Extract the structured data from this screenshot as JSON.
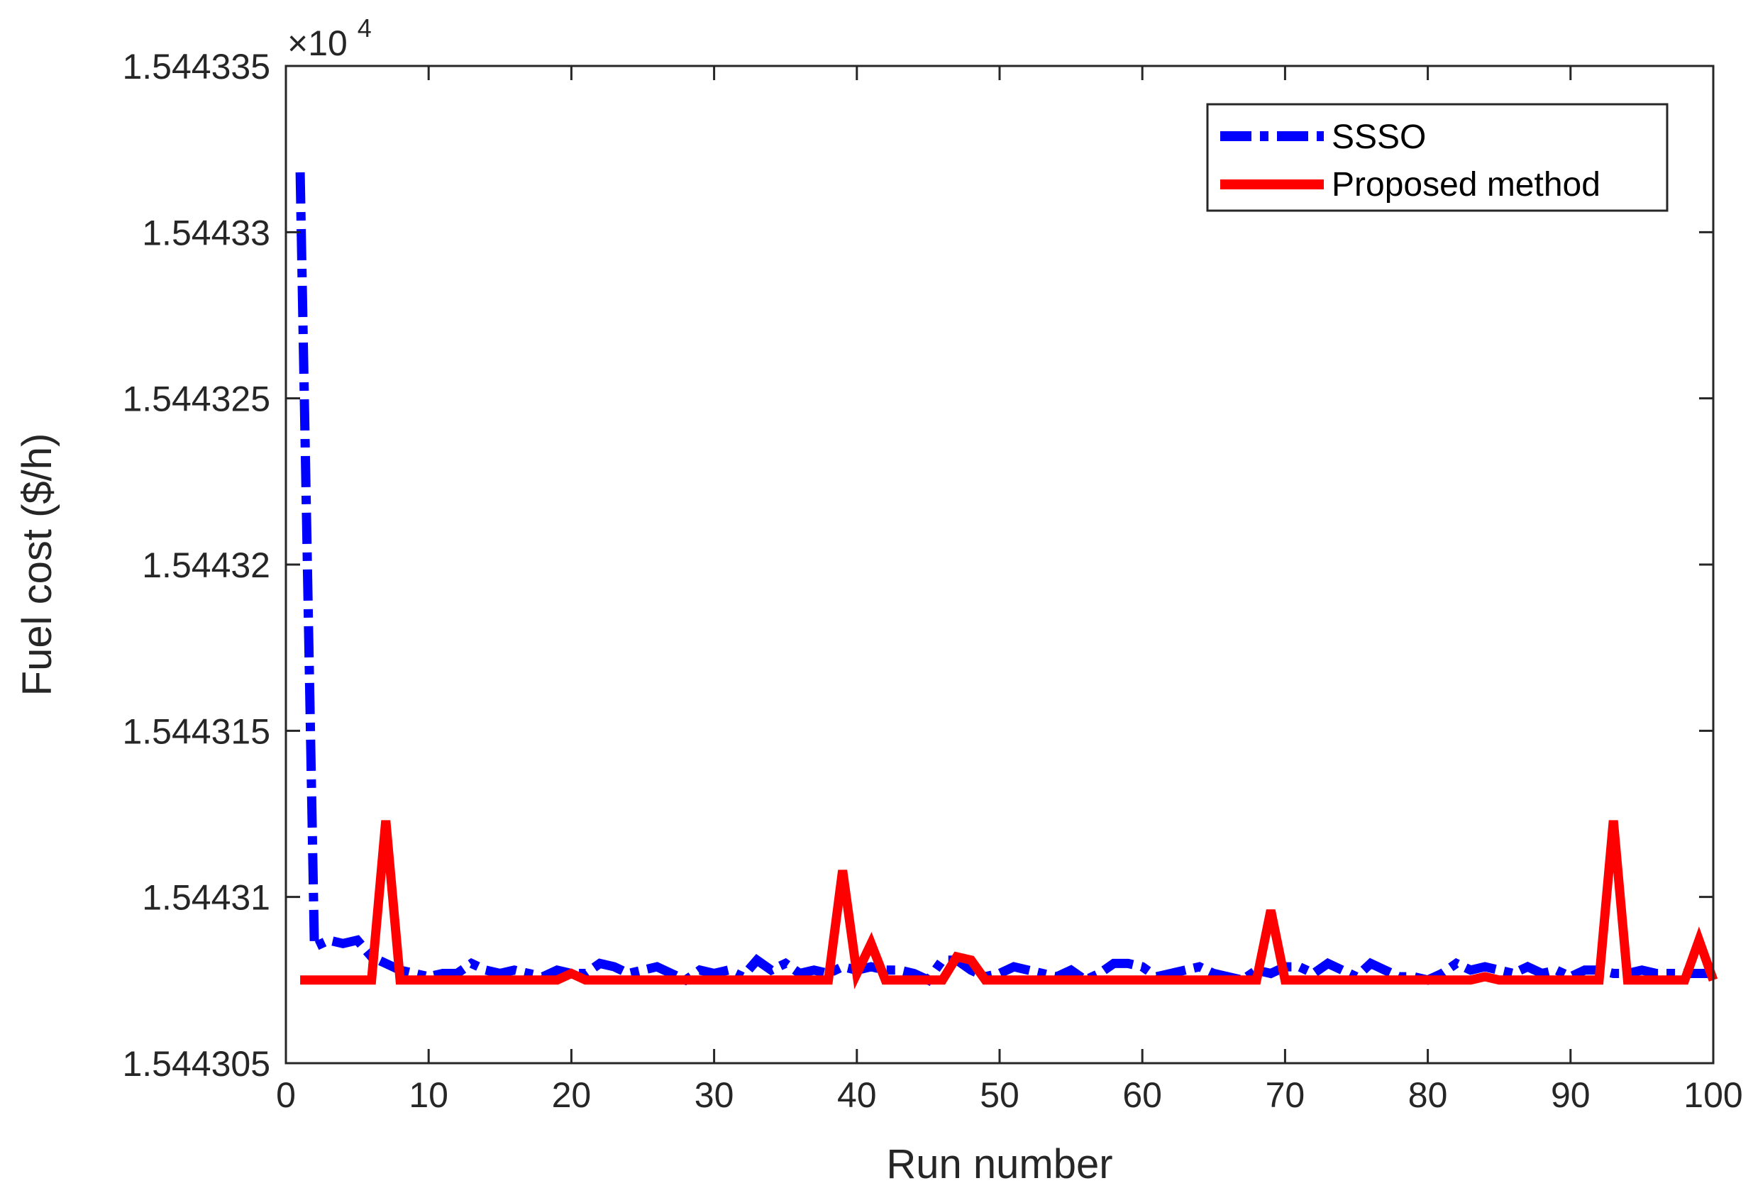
{
  "chart_data": {
    "type": "line",
    "xlabel": "Run number",
    "ylabel": "Fuel cost ($/h)",
    "exponent_label": "×10",
    "exponent_power": "4",
    "xlim": [
      0,
      100
    ],
    "ylim": [
      1.544305,
      1.544335
    ],
    "x_ticks": [
      0,
      10,
      20,
      30,
      40,
      50,
      60,
      70,
      80,
      90,
      100
    ],
    "x_tick_labels": [
      "0",
      "10",
      "20",
      "30",
      "40",
      "50",
      "60",
      "70",
      "80",
      "90",
      "100"
    ],
    "y_ticks": [
      1.544305,
      1.54431,
      1.544315,
      1.54432,
      1.544325,
      1.54433,
      1.544335
    ],
    "y_tick_labels": [
      "1.544305",
      "1.54431",
      "1.544315",
      "1.54432",
      "1.544325",
      "1.54433",
      "1.544335"
    ],
    "grid": false,
    "legend_position": "top-right",
    "x": [
      1,
      2,
      3,
      4,
      5,
      6,
      7,
      8,
      9,
      10,
      11,
      12,
      13,
      14,
      15,
      16,
      17,
      18,
      19,
      20,
      21,
      22,
      23,
      24,
      25,
      26,
      27,
      28,
      29,
      30,
      31,
      32,
      33,
      34,
      35,
      36,
      37,
      38,
      39,
      40,
      41,
      42,
      43,
      44,
      45,
      46,
      47,
      48,
      49,
      50,
      51,
      52,
      53,
      54,
      55,
      56,
      57,
      58,
      59,
      60,
      61,
      62,
      63,
      64,
      65,
      66,
      67,
      68,
      69,
      70,
      71,
      72,
      73,
      74,
      75,
      76,
      77,
      78,
      79,
      80,
      81,
      82,
      83,
      84,
      85,
      86,
      87,
      88,
      89,
      90,
      91,
      92,
      93,
      94,
      95,
      96,
      97,
      98,
      99,
      100
    ],
    "series": [
      {
        "name": "SSSO",
        "color": "#0000ff",
        "style": "dashdot",
        "values": [
          1.5443318,
          1.5443085,
          1.5443087,
          1.5443086,
          1.5443087,
          1.5443082,
          1.544308,
          1.5443078,
          1.5443077,
          1.5443076,
          1.5443077,
          1.5443077,
          1.544308,
          1.5443078,
          1.5443077,
          1.5443078,
          1.5443077,
          1.5443076,
          1.5443078,
          1.5443077,
          1.5443077,
          1.544308,
          1.5443079,
          1.5443077,
          1.5443078,
          1.5443079,
          1.5443077,
          1.5443075,
          1.5443078,
          1.5443077,
          1.5443078,
          1.5443076,
          1.5443081,
          1.5443078,
          1.544308,
          1.5443077,
          1.5443078,
          1.5443077,
          1.5443079,
          1.5443078,
          1.5443079,
          1.5443078,
          1.5443078,
          1.5443077,
          1.5443075,
          1.5443081,
          1.5443081,
          1.5443078,
          1.5443076,
          1.5443077,
          1.5443079,
          1.5443078,
          1.5443077,
          1.5443076,
          1.5443078,
          1.5443075,
          1.5443077,
          1.544308,
          1.544308,
          1.5443079,
          1.5443076,
          1.5443077,
          1.5443078,
          1.5443079,
          1.5443077,
          1.5443076,
          1.5443075,
          1.5443078,
          1.5443077,
          1.5443079,
          1.5443079,
          1.5443077,
          1.544308,
          1.5443078,
          1.5443076,
          1.544308,
          1.5443078,
          1.5443076,
          1.5443076,
          1.5443075,
          1.5443077,
          1.544308,
          1.5443078,
          1.5443079,
          1.5443078,
          1.5443077,
          1.5443079,
          1.5443077,
          1.5443078,
          1.5443076,
          1.5443078,
          1.5443078,
          1.5443077,
          1.5443077,
          1.5443078,
          1.5443077,
          1.5443077,
          1.5443077,
          1.5443077,
          1.5443077
        ]
      },
      {
        "name": "Proposed method",
        "color": "#ff0000",
        "style": "solid",
        "values": [
          1.5443075,
          1.5443075,
          1.5443075,
          1.5443075,
          1.5443075,
          1.5443075,
          1.5443123,
          1.5443075,
          1.5443075,
          1.5443075,
          1.5443075,
          1.5443075,
          1.5443075,
          1.5443075,
          1.5443075,
          1.5443075,
          1.5443075,
          1.5443075,
          1.5443075,
          1.5443077,
          1.5443075,
          1.5443075,
          1.5443075,
          1.5443075,
          1.5443075,
          1.5443075,
          1.5443075,
          1.5443075,
          1.5443075,
          1.5443075,
          1.5443075,
          1.5443075,
          1.5443075,
          1.5443075,
          1.5443075,
          1.5443075,
          1.5443075,
          1.5443075,
          1.5443108,
          1.5443077,
          1.5443086,
          1.5443075,
          1.5443075,
          1.5443075,
          1.5443075,
          1.5443075,
          1.5443082,
          1.5443081,
          1.5443075,
          1.5443075,
          1.5443075,
          1.5443075,
          1.5443075,
          1.5443075,
          1.5443075,
          1.5443075,
          1.5443075,
          1.5443075,
          1.5443075,
          1.5443075,
          1.5443075,
          1.5443075,
          1.5443075,
          1.5443075,
          1.5443075,
          1.5443075,
          1.5443075,
          1.5443075,
          1.5443096,
          1.5443075,
          1.5443075,
          1.5443075,
          1.5443075,
          1.5443075,
          1.5443075,
          1.5443075,
          1.5443075,
          1.5443075,
          1.5443075,
          1.5443075,
          1.5443075,
          1.5443075,
          1.5443075,
          1.5443076,
          1.5443075,
          1.5443075,
          1.5443075,
          1.5443075,
          1.5443075,
          1.5443075,
          1.5443075,
          1.5443075,
          1.5443123,
          1.5443075,
          1.5443075,
          1.5443075,
          1.5443075,
          1.5443075,
          1.5443087,
          1.5443075
        ]
      }
    ]
  }
}
